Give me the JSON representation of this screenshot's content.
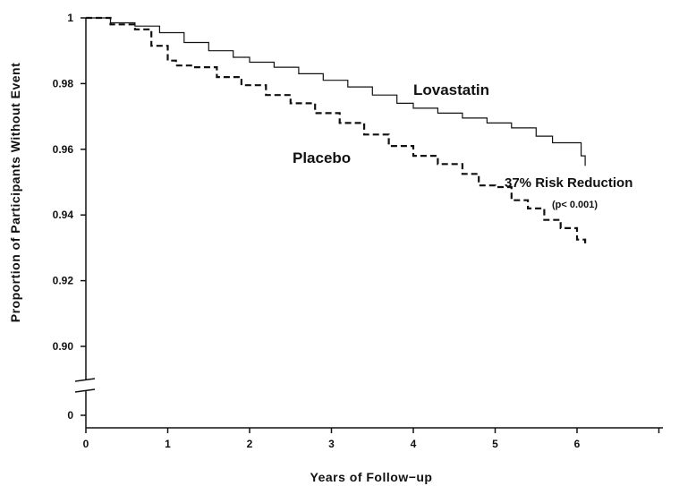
{
  "chart_data": {
    "type": "line",
    "xlabel": "Years of Follow−up",
    "ylabel": "Proportion of Participants Without Event",
    "xlim": [
      0,
      7
    ],
    "ylim": [
      0.89,
      1.0
    ],
    "x_ticks": [
      0,
      1,
      2,
      3,
      4,
      5,
      6
    ],
    "x_tick_labels": [
      "0",
      "1",
      "2",
      "3",
      "4",
      "5",
      "6"
    ],
    "y_ticks": [
      0.9,
      0.92,
      0.94,
      0.96,
      0.98,
      1.0
    ],
    "y_tick_labels": [
      "0.90",
      "0.92",
      "0.94",
      "0.96",
      "0.98",
      "1"
    ],
    "y_break": true,
    "y_bottom_tick_label": "0",
    "grid": false,
    "legend": "none",
    "series": [
      {
        "name": "Lovastatin",
        "style": "solid",
        "color": "#111111",
        "x": [
          0,
          0.3,
          0.6,
          0.9,
          1.2,
          1.5,
          1.8,
          2.0,
          2.3,
          2.6,
          2.9,
          3.2,
          3.5,
          3.8,
          4.0,
          4.3,
          4.6,
          4.9,
          5.2,
          5.5,
          5.7,
          5.95,
          6.05,
          6.1
        ],
        "y": [
          1.0,
          0.9985,
          0.9975,
          0.9955,
          0.9925,
          0.99,
          0.988,
          0.9865,
          0.985,
          0.983,
          0.981,
          0.979,
          0.9765,
          0.974,
          0.9725,
          0.971,
          0.9695,
          0.968,
          0.9665,
          0.964,
          0.962,
          0.962,
          0.958,
          0.955
        ]
      },
      {
        "name": "Placebo",
        "style": "dashed",
        "color": "#111111",
        "x": [
          0,
          0.3,
          0.6,
          0.8,
          1.0,
          1.1,
          1.3,
          1.6,
          1.9,
          2.2,
          2.5,
          2.8,
          3.1,
          3.4,
          3.7,
          4.0,
          4.3,
          4.6,
          4.8,
          5.0,
          5.2,
          5.4,
          5.6,
          5.8,
          6.0,
          6.1
        ],
        "y": [
          1.0,
          0.998,
          0.9965,
          0.9915,
          0.987,
          0.9855,
          0.985,
          0.982,
          0.9795,
          0.9765,
          0.974,
          0.971,
          0.968,
          0.9645,
          0.961,
          0.958,
          0.9555,
          0.9525,
          0.949,
          0.9485,
          0.9445,
          0.942,
          0.9385,
          0.936,
          0.9325,
          0.931
        ]
      }
    ],
    "annotations": {
      "lovastatin_label": "Lovastatin",
      "placebo_label": "Placebo",
      "risk_reduction": "37% Risk Reduction",
      "p_value": "(p< 0.001)"
    }
  }
}
